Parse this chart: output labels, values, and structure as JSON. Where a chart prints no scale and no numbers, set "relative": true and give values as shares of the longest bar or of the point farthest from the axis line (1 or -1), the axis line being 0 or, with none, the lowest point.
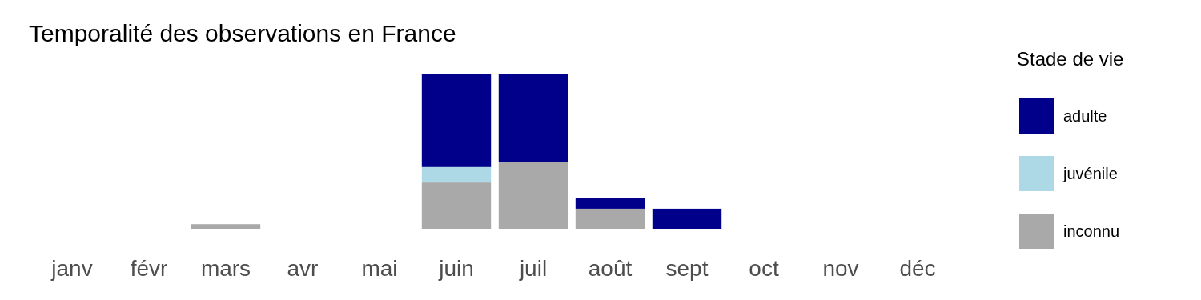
{
  "chart_data": {
    "type": "bar",
    "title": "Temporalité des observations en France",
    "legend_title": "Stade de vie",
    "categories": [
      "janv",
      "févr",
      "mars",
      "avr",
      "mai",
      "juin",
      "juil",
      "août",
      "sept",
      "oct",
      "nov",
      "déc"
    ],
    "relative": true,
    "stacked": true,
    "legend": "right",
    "series": [
      {
        "name": "inconnu",
        "color": "#a9a9a9",
        "values": [
          null,
          null,
          0.03,
          null,
          null,
          0.3,
          0.43,
          0.13,
          null,
          null,
          null,
          null
        ]
      },
      {
        "name": "juvénile",
        "color": "#add8e6",
        "values": [
          null,
          null,
          null,
          null,
          null,
          0.1,
          null,
          null,
          null,
          null,
          null,
          null
        ]
      },
      {
        "name": "adulte",
        "color": "#00008b",
        "values": [
          null,
          null,
          null,
          null,
          null,
          0.6,
          0.57,
          0.07,
          0.13,
          null,
          null,
          null
        ]
      }
    ]
  }
}
